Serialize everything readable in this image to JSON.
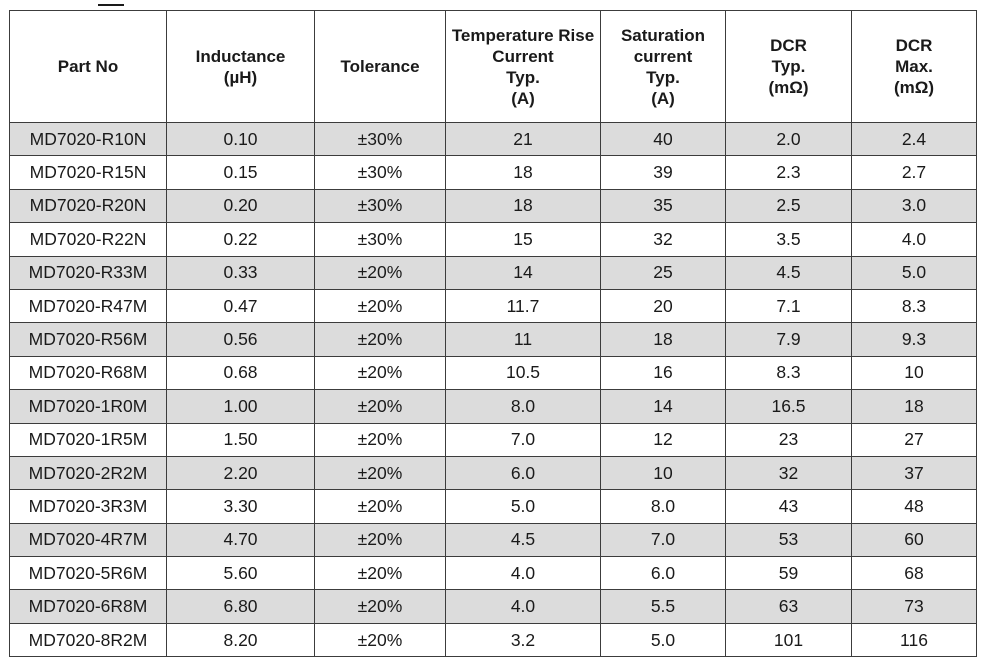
{
  "table": {
    "headers": [
      [
        "Part No"
      ],
      [
        "Inductance",
        "(µH)"
      ],
      [
        "Tolerance"
      ],
      [
        "Temperature Rise",
        "Current",
        "Typ.",
        "(A)"
      ],
      [
        "Saturation",
        "current",
        "Typ.",
        "(A)"
      ],
      [
        "DCR",
        "Typ.",
        "(mΩ)"
      ],
      [
        "DCR",
        "Max.",
        "(mΩ)"
      ]
    ],
    "rows": [
      [
        "MD7020-R10N",
        "0.10",
        "±30%",
        "21",
        "40",
        "2.0",
        "2.4"
      ],
      [
        "MD7020-R15N",
        "0.15",
        "±30%",
        "18",
        "39",
        "2.3",
        "2.7"
      ],
      [
        "MD7020-R20N",
        "0.20",
        "±30%",
        "18",
        "35",
        "2.5",
        "3.0"
      ],
      [
        "MD7020-R22N",
        "0.22",
        "±30%",
        "15",
        "32",
        "3.5",
        "4.0"
      ],
      [
        "MD7020-R33M",
        "0.33",
        "±20%",
        "14",
        "25",
        "4.5",
        "5.0"
      ],
      [
        "MD7020-R47M",
        "0.47",
        "±20%",
        "11.7",
        "20",
        "7.1",
        "8.3"
      ],
      [
        "MD7020-R56M",
        "0.56",
        "±20%",
        "11",
        "18",
        "7.9",
        "9.3"
      ],
      [
        "MD7020-R68M",
        "0.68",
        "±20%",
        "10.5",
        "16",
        "8.3",
        "10"
      ],
      [
        "MD7020-1R0M",
        "1.00",
        "±20%",
        "8.0",
        "14",
        "16.5",
        "18"
      ],
      [
        "MD7020-1R5M",
        "1.50",
        "±20%",
        "7.0",
        "12",
        "23",
        "27"
      ],
      [
        "MD7020-2R2M",
        "2.20",
        "±20%",
        "6.0",
        "10",
        "32",
        "37"
      ],
      [
        "MD7020-3R3M",
        "3.30",
        "±20%",
        "5.0",
        "8.0",
        "43",
        "48"
      ],
      [
        "MD7020-4R7M",
        "4.70",
        "±20%",
        "4.5",
        "7.0",
        "53",
        "60"
      ],
      [
        "MD7020-5R6M",
        "5.60",
        "±20%",
        "4.0",
        "6.0",
        "59",
        "68"
      ],
      [
        "MD7020-6R8M",
        "6.80",
        "±20%",
        "4.0",
        "5.5",
        "63",
        "73"
      ],
      [
        "MD7020-8R2M",
        "8.20",
        "±20%",
        "3.2",
        "5.0",
        "101",
        "116"
      ]
    ]
  }
}
